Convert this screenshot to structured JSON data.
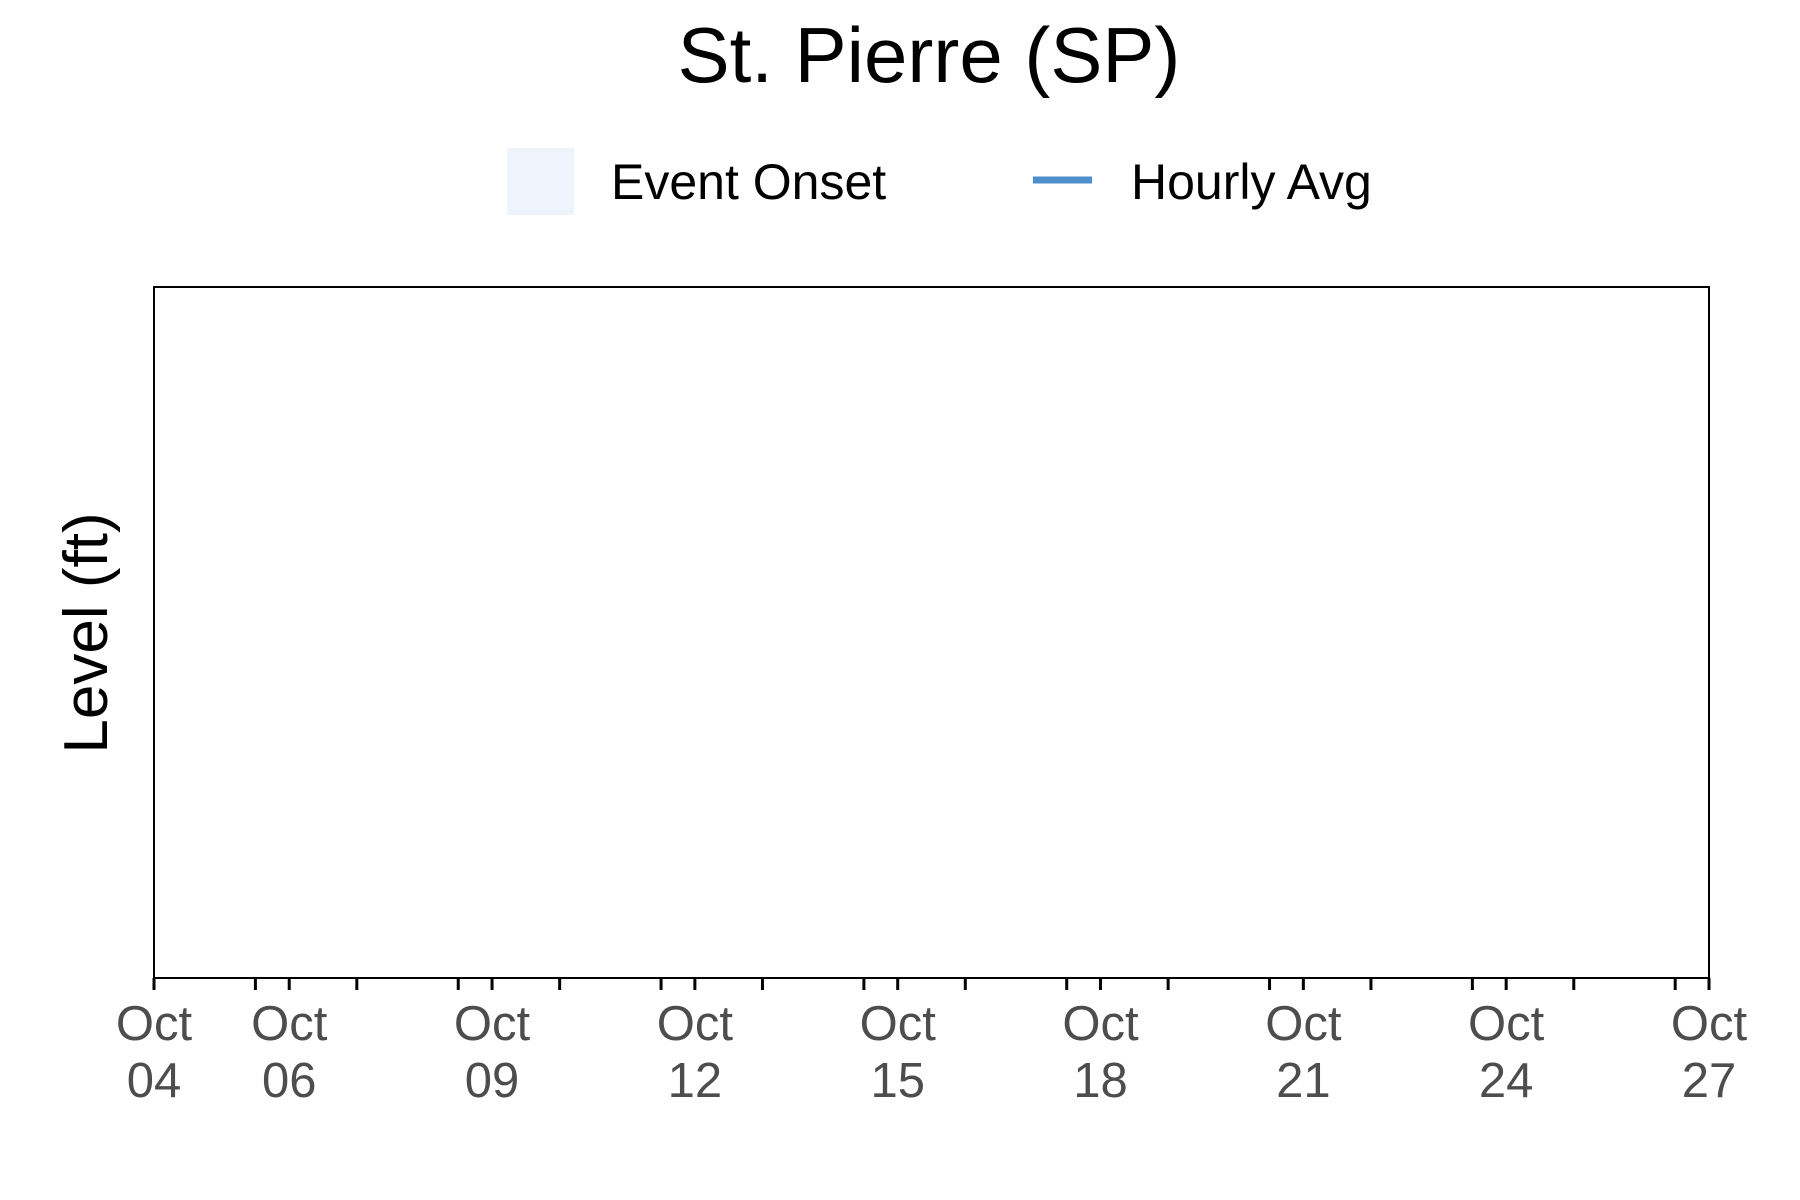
{
  "chart_data": {
    "type": "line",
    "title": "St. Pierre (SP)",
    "xlabel": "",
    "ylabel": "Level (ft)",
    "legend": {
      "placement": "top",
      "entries": [
        {
          "label": "Event Onset",
          "kind": "shaded-area",
          "color": "#eef4fb"
        },
        {
          "label": "Hourly Avg",
          "kind": "line",
          "color": "#4d8fcb"
        }
      ]
    },
    "x_axis": {
      "type": "date",
      "range": [
        "Oct 04",
        "Oct 27"
      ],
      "minor_tick_interval_days": 1.5,
      "tick_labels": [
        {
          "day": 4,
          "month": "Oct",
          "date": "04"
        },
        {
          "day": 6,
          "month": "Oct",
          "date": "06"
        },
        {
          "day": 9,
          "month": "Oct",
          "date": "09"
        },
        {
          "day": 12,
          "month": "Oct",
          "date": "12"
        },
        {
          "day": 15,
          "month": "Oct",
          "date": "15"
        },
        {
          "day": 18,
          "month": "Oct",
          "date": "18"
        },
        {
          "day": 21,
          "month": "Oct",
          "date": "21"
        },
        {
          "day": 24,
          "month": "Oct",
          "date": "24"
        },
        {
          "day": 27,
          "month": "Oct",
          "date": "27"
        }
      ]
    },
    "grid": false,
    "series": [
      {
        "name": "Hourly Avg",
        "values": []
      }
    ],
    "colors": {
      "axis": "#000000",
      "tick_label": "#4d4d4d",
      "event_onset": "#eef4fb",
      "hourly_avg": "#4d8fcb"
    }
  }
}
